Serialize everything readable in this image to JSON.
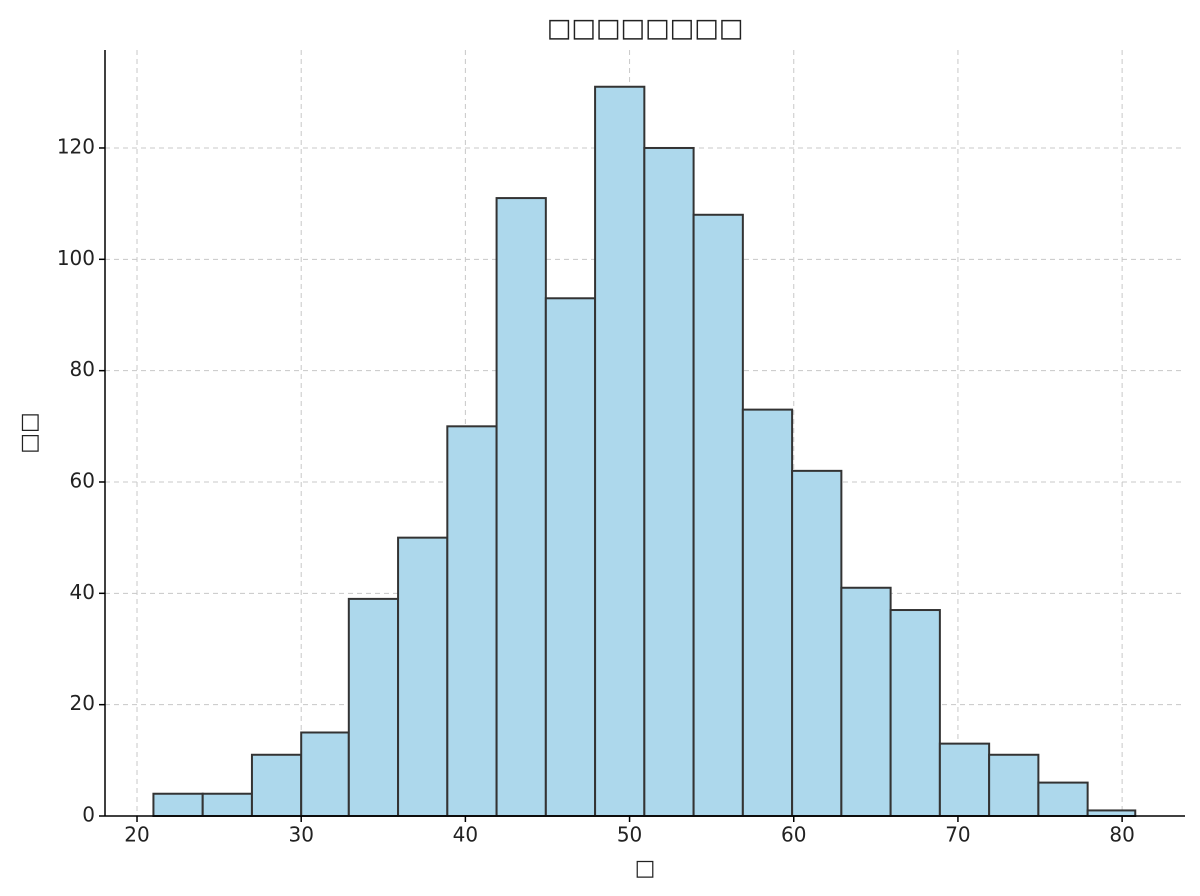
{
  "chart_data": {
    "type": "histogram",
    "title": "□□□□□□□□",
    "xlabel": "□",
    "ylabel": "□□",
    "bins": [
      21.0,
      24.0,
      27.0,
      30.0,
      32.9,
      35.9,
      38.9,
      41.9,
      44.9,
      47.9,
      50.9,
      53.9,
      56.9,
      59.9,
      62.9,
      65.9,
      68.9,
      71.9,
      74.9,
      77.9,
      80.8
    ],
    "counts": [
      4,
      4,
      11,
      15,
      39,
      50,
      70,
      111,
      93,
      131,
      120,
      108,
      73,
      62,
      41,
      37,
      13,
      11,
      6,
      1
    ],
    "color": "#add8ec",
    "edgecolor": "#333333",
    "xlim": [
      18.05,
      83.83
    ],
    "ylim": [
      0,
      137.6
    ],
    "xticks": [
      20,
      30,
      40,
      50,
      60,
      70,
      80
    ],
    "yticks": [
      0,
      20,
      40,
      60,
      80,
      100,
      120
    ],
    "grid": true
  }
}
